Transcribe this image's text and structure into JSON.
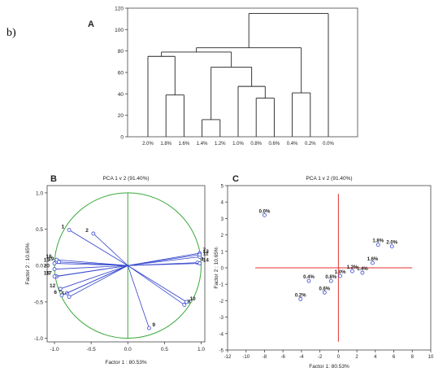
{
  "figure_label": "b)",
  "chart_data": [
    {
      "type": "dendrogram",
      "panel": "A",
      "ylim": [
        0,
        120
      ],
      "yticks": [
        0,
        20,
        40,
        60,
        80,
        100,
        120
      ],
      "leaves": [
        "2.0%",
        "1.8%",
        "1.6%",
        "1.4%",
        "1.2%",
        "1.0%",
        "0.8%",
        "0.6%",
        "0.4%",
        "0.2%",
        "0.0%"
      ],
      "merges": [
        {
          "left": 1,
          "right": 2,
          "height": 39
        },
        {
          "left": 3,
          "right": 4,
          "height": 16
        },
        {
          "left": 6,
          "right": 7,
          "height": 36
        },
        {
          "left": 8,
          "right": 9,
          "height": 41
        },
        {
          "left": 0,
          "right": "1+2",
          "height": 75
        },
        {
          "left": 5,
          "right": "6+7",
          "height": 47
        },
        {
          "left": "3+4",
          "right": "5+6+7",
          "height": 65
        },
        {
          "left": "0+1+2",
          "right": "3..7",
          "height": 79
        },
        {
          "left": "0..7",
          "right": "8+9",
          "height": 83
        },
        {
          "left": "0..9",
          "right": 10,
          "height": 115
        }
      ]
    },
    {
      "type": "scatter",
      "panel": "B",
      "title": "PCA 1 v 2 (91.40%)",
      "xlabel": "Factor 1 : 80.53%",
      "ylabel": "Factor 2 : 10.65%",
      "xlim": [
        -1.1,
        1.05
      ],
      "ylim": [
        -1.05,
        1.1
      ],
      "xticks": [
        "-1.0",
        "-0.5",
        "0.0",
        "0.5",
        "1.0"
      ],
      "yticks": [
        "-1.0",
        "-0.5",
        "0.0",
        "0.5",
        "1.0"
      ],
      "points": [
        {
          "label": "1",
          "x": -0.8,
          "y": 0.49
        },
        {
          "label": "2",
          "x": -0.47,
          "y": 0.44
        },
        {
          "label": "3",
          "x": -0.83,
          "y": -0.38
        },
        {
          "label": "4",
          "x": 0.95,
          "y": 0.04
        },
        {
          "label": "5",
          "x": -0.8,
          "y": -0.43
        },
        {
          "label": "6",
          "x": -0.9,
          "y": -0.41
        },
        {
          "label": "7",
          "x": 0.98,
          "y": 0.17
        },
        {
          "label": "8",
          "x": 0.77,
          "y": -0.54
        },
        {
          "label": "9",
          "x": 0.29,
          "y": -0.86
        },
        {
          "label": "10",
          "x": 0.8,
          "y": -0.5
        },
        {
          "label": "11",
          "x": 0.98,
          "y": 0.12
        },
        {
          "label": "12",
          "x": -0.92,
          "y": -0.32
        },
        {
          "label": "13",
          "x": 0.98,
          "y": 0.15
        },
        {
          "label": "14",
          "x": 0.98,
          "y": 0.03
        },
        {
          "label": "15",
          "x": -1.0,
          "y": 0.03
        },
        {
          "label": "16",
          "x": -0.97,
          "y": 0.08
        },
        {
          "label": "17",
          "x": -0.97,
          "y": -0.15
        },
        {
          "label": "18",
          "x": -1.0,
          "y": -0.15
        },
        {
          "label": "19",
          "x": -0.94,
          "y": 0.05
        },
        {
          "label": "20",
          "x": -1.0,
          "y": -0.05
        }
      ]
    },
    {
      "type": "scatter",
      "panel": "C",
      "title": "PCA 1 v 2 (91.40%)",
      "xlabel": "Factor 1: 80.53%",
      "ylabel": "Factor 2 : 10.65%",
      "xlim": [
        -12,
        10
      ],
      "ylim": [
        -5,
        5
      ],
      "xticks": [
        "-12",
        "-10",
        "-8",
        "-6",
        "-4",
        "-2",
        "0",
        "2",
        "4",
        "6",
        "8",
        "10"
      ],
      "yticks": [
        "-5",
        "-4",
        "-3",
        "-2",
        "-1",
        "0",
        "1",
        "2",
        "3",
        "4",
        "5"
      ],
      "points": [
        {
          "label": "0.0%",
          "x": -8.0,
          "y": 3.2
        },
        {
          "label": "0.2%",
          "x": -4.1,
          "y": -1.9
        },
        {
          "label": "0.4%",
          "x": -3.2,
          "y": -0.8
        },
        {
          "label": "0.6%",
          "x": -1.5,
          "y": -1.5
        },
        {
          "label": "0.8%",
          "x": -0.8,
          "y": -0.8
        },
        {
          "label": "1.0%",
          "x": 0.2,
          "y": -0.5
        },
        {
          "label": "1.2%",
          "x": 1.5,
          "y": -0.2
        },
        {
          "label": "1.4%",
          "x": 2.6,
          "y": -0.3
        },
        {
          "label": "1.6%",
          "x": 3.7,
          "y": 0.3
        },
        {
          "label": "1.8%",
          "x": 4.3,
          "y": 1.4
        },
        {
          "label": "2.0%",
          "x": 5.8,
          "y": 1.3
        }
      ]
    }
  ]
}
